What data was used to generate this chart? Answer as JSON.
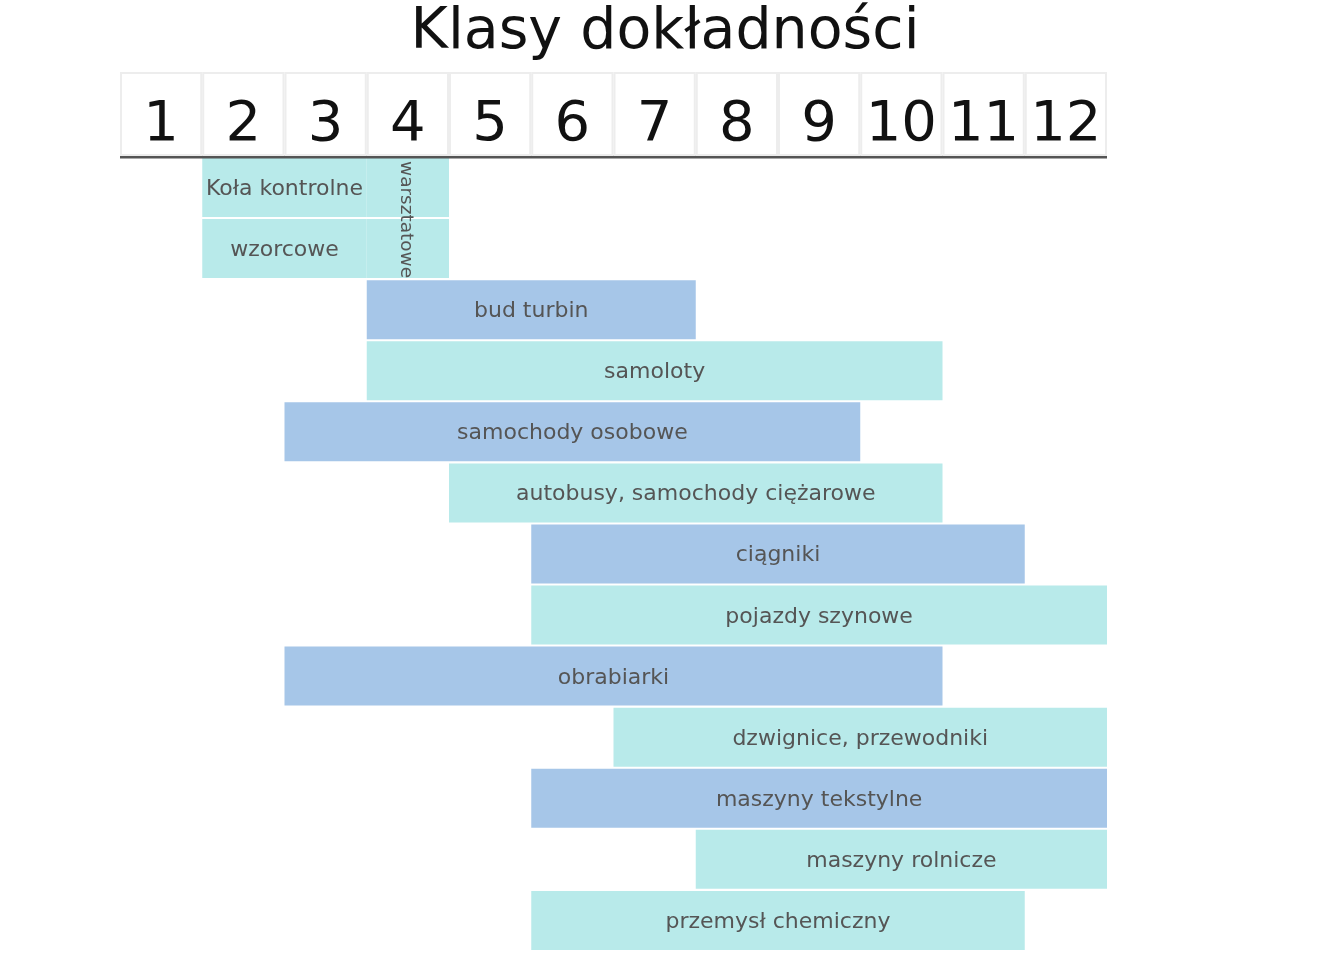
{
  "chart_data": {
    "type": "bar",
    "orientation": "horizontal",
    "title": "Klasy dokładności",
    "categories": [
      "Koła kontrolne",
      "wzorcowe",
      "bud turbin",
      "samoloty",
      "samochody osobowe",
      "autobusy, samochody ciężarowe",
      "ciągniki",
      "pojazdy szynowe",
      "obrabiarki",
      "dzwignice, przewodniki",
      "maszyny tekstylne",
      "maszyny rolnicze",
      "przemysł chemiczny"
    ],
    "series": [
      {
        "values": [
          2,
          2,
          4,
          7,
          7,
          6,
          6,
          7,
          8,
          6,
          7,
          5,
          6
        ],
        "base": [
          1.5,
          1.5,
          3.5,
          3.5,
          2.5,
          4.5,
          5.5,
          5.5,
          2.5,
          6.5,
          5.5,
          7.5,
          5.5
        ],
        "colors": [
          "#b8eaea",
          "#b8eaea",
          "#a6c6e8",
          "#b8eaea",
          "#a6c6e8",
          "#b8eaea",
          "#a6c6e8",
          "#b8eaea",
          "#a6c6e8",
          "#b8eaea",
          "#a6c6e8",
          "#b8eaea",
          "#b8eaea"
        ]
      },
      {
        "name": "warsztatowe",
        "color": "#b8eaea",
        "values": [
          1,
          1,
          null,
          null,
          null,
          null,
          null,
          null,
          null,
          null,
          null,
          null,
          null
        ],
        "base": [
          3.5,
          3.5,
          null,
          null,
          null,
          null,
          null,
          null,
          null,
          null,
          null,
          null,
          null
        ]
      }
    ],
    "xlim": [
      0.5,
      12.5
    ],
    "xticks": [
      1,
      2,
      3,
      4,
      5,
      6,
      7,
      8,
      9,
      10,
      11,
      12
    ]
  }
}
